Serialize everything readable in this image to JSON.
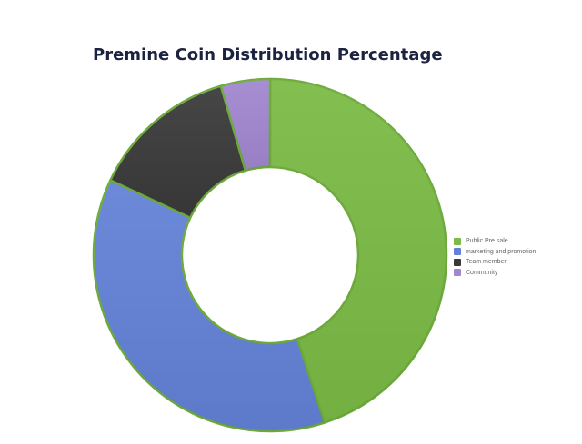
{
  "chart_data": {
    "type": "pie",
    "variant": "donut",
    "title": "Premine Coin Distribution Percentage",
    "categories": [
      "Public Pre sale",
      "marketing and promotion",
      "Team member",
      "Community"
    ],
    "values": [
      45,
      37,
      13.5,
      4.5
    ],
    "colors": [
      "#7aba45",
      "#6381d6",
      "#3a3a3a",
      "#a287d0"
    ],
    "slice_border_color": "#6daa3b",
    "legend_position": "right"
  }
}
